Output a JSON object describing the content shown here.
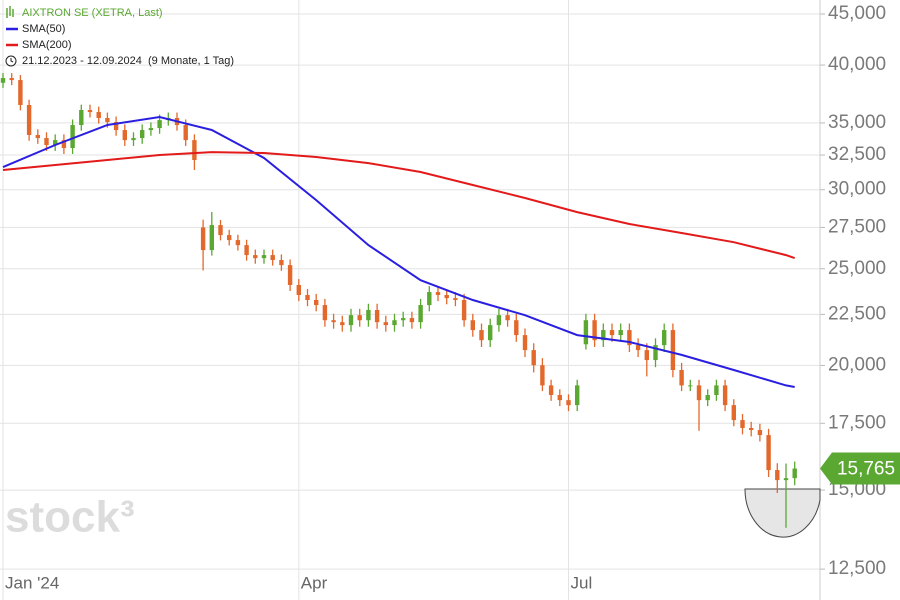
{
  "chart_data": {
    "type": "candlestick",
    "name": "AIXTRON SE (XETRA, Last)",
    "subtitle": "21.12.2023 - 12.09.2024  (9 Monate, 1 Tag)",
    "watermark": "stock³",
    "up_color": "#5aa832",
    "down_color": "#e3682c",
    "categories": [
      "Jan '24",
      null,
      null,
      null,
      null,
      null,
      null,
      null,
      null,
      null,
      null,
      null,
      null,
      null,
      null,
      null,
      null,
      null,
      null,
      null,
      null,
      null,
      null,
      null,
      null,
      null,
      null,
      null,
      null,
      null,
      null,
      null,
      null,
      null,
      "Apr",
      null,
      null,
      null,
      null,
      null,
      null,
      null,
      null,
      null,
      null,
      null,
      null,
      null,
      null,
      null,
      null,
      null,
      null,
      null,
      null,
      null,
      null,
      null,
      null,
      null,
      null,
      null,
      null,
      null,
      null,
      "Jul",
      null,
      null,
      null,
      null,
      null,
      null,
      null,
      null,
      null,
      null,
      null,
      null,
      null,
      null,
      null,
      null,
      null,
      null,
      null,
      null,
      null,
      null,
      null,
      null,
      null,
      null
    ],
    "open": [
      38400,
      38820,
      38640,
      36480,
      34040,
      33800,
      33260,
      33640,
      33030,
      34830,
      36060,
      35890,
      35400,
      35070,
      34430,
      33640,
      33800,
      34430,
      34590,
      35230,
      35400,
      34830,
      33640,
      27500,
      26100,
      27650,
      27020,
      26710,
      26400,
      25800,
      25620,
      25800,
      25510,
      25210,
      24080,
      23530,
      23260,
      22990,
      22200,
      22100,
      21950,
      22460,
      22200,
      22730,
      22100,
      21950,
      22200,
      22310,
      22100,
      22990,
      23690,
      23530,
      23360,
      23260,
      22200,
      21700,
      21200,
      21950,
      22460,
      22200,
      21450,
      20720,
      20010,
      19100,
      18680,
      18460,
      18250,
      21000,
      22200,
      21200,
      21700,
      21450,
      21700,
      20960,
      20720,
      20250,
      20960,
      21700,
      19790,
      19100,
      19100,
      18460,
      18680,
      19100,
      18250,
      17630,
      17310,
      17230,
      17030,
      15710,
      15350,
      15420
    ],
    "high": [
      39270,
      39270,
      39090,
      36930,
      34490,
      34250,
      34090,
      34090,
      35280,
      36510,
      36510,
      36340,
      35850,
      35520,
      34880,
      34250,
      34880,
      35040,
      35680,
      35850,
      35850,
      35280,
      34090,
      28000,
      28500,
      27980,
      27350,
      27040,
      26730,
      26130,
      26130,
      26130,
      25840,
      25540,
      24410,
      23860,
      23590,
      23320,
      22530,
      22430,
      22790,
      22790,
      23060,
      23060,
      22430,
      22530,
      22640,
      22640,
      23320,
      24020,
      24020,
      23860,
      23690,
      23590,
      22530,
      22030,
      22280,
      22790,
      22790,
      22530,
      21780,
      21050,
      20340,
      19350,
      18930,
      18710,
      19350,
      22530,
      22530,
      22030,
      22030,
      22030,
      22030,
      21290,
      21050,
      21290,
      22030,
      22030,
      20120,
      19350,
      19350,
      18930,
      19350,
      19350,
      18500,
      17880,
      17560,
      17480,
      17280,
      15960,
      15950,
      16020
    ],
    "low": [
      37950,
      38190,
      36030,
      33590,
      33350,
      32810,
      32810,
      32580,
      32580,
      34380,
      35440,
      34950,
      34620,
      33980,
      33190,
      33190,
      33350,
      33980,
      34140,
      34780,
      34380,
      33190,
      31400,
      24900,
      25770,
      26690,
      26380,
      26070,
      25470,
      25290,
      25290,
      25180,
      24880,
      23750,
      23200,
      22930,
      22660,
      21870,
      21770,
      21620,
      21620,
      21870,
      21870,
      21770,
      21620,
      21620,
      21870,
      21770,
      21770,
      22660,
      23200,
      23030,
      22930,
      21870,
      21370,
      20870,
      20870,
      21620,
      21870,
      21120,
      20390,
      19680,
      18850,
      18430,
      18210,
      18000,
      18000,
      20750,
      20870,
      20870,
      21120,
      21120,
      20630,
      20390,
      19500,
      19920,
      20630,
      19460,
      18850,
      18850,
      17200,
      18210,
      18430,
      18000,
      17380,
      17060,
      16980,
      16780,
      15460,
      14900,
      13750,
      15170
    ],
    "close": [
      38820,
      38640,
      36480,
      34040,
      33800,
      33260,
      33640,
      33030,
      34830,
      36060,
      35890,
      35400,
      35070,
      34430,
      33640,
      33800,
      34430,
      34590,
      35230,
      35400,
      34830,
      33640,
      32130,
      26100,
      27650,
      27020,
      26710,
      26400,
      25800,
      25620,
      25800,
      25510,
      25210,
      24080,
      23530,
      23260,
      22990,
      22200,
      22100,
      21950,
      22460,
      22200,
      22730,
      22100,
      21950,
      22200,
      22310,
      22100,
      22990,
      23690,
      23530,
      23360,
      23260,
      22200,
      21700,
      21200,
      21950,
      22460,
      22200,
      21450,
      20720,
      20010,
      19100,
      18680,
      18460,
      18250,
      19100,
      22200,
      21200,
      21700,
      21450,
      21700,
      20960,
      20720,
      20250,
      20960,
      21700,
      19790,
      19100,
      19100,
      18460,
      18680,
      19100,
      18250,
      17630,
      17310,
      17230,
      17030,
      15710,
      15350,
      15420,
      15765
    ],
    "last_close_label": "15,765",
    "series": [
      {
        "name": "SMA(50)",
        "color": "#2a1fe0",
        "x": [
          0,
          6,
          12,
          18,
          24,
          30,
          36,
          42,
          48,
          54,
          60,
          66,
          72,
          78,
          84,
          90,
          91
        ],
        "values": [
          31610,
          33260,
          34830,
          35480,
          34430,
          32280,
          29290,
          26400,
          24350,
          23260,
          22460,
          21450,
          21110,
          20490,
          19790,
          19100,
          19030
        ]
      },
      {
        "name": "SMA(200)",
        "color": "#e31a1a",
        "x": [
          0,
          6,
          12,
          18,
          24,
          30,
          36,
          42,
          48,
          54,
          60,
          66,
          72,
          78,
          84,
          90,
          91
        ],
        "values": [
          31400,
          31760,
          32130,
          32500,
          32720,
          32650,
          32350,
          31900,
          31250,
          30330,
          29430,
          28490,
          27720,
          27150,
          26580,
          25800,
          25620
        ]
      }
    ],
    "log_y": true,
    "ylim": [
      11640,
      46480
    ],
    "yticks": [
      {
        "value": 12500,
        "label": "12,500"
      },
      {
        "value": 15000,
        "label": "15,000"
      },
      {
        "value": 17500,
        "label": "17,500"
      },
      {
        "value": 20000,
        "label": "20,000"
      },
      {
        "value": 22500,
        "label": "22,500"
      },
      {
        "value": 25000,
        "label": "25,000"
      },
      {
        "value": 27500,
        "label": "27,500"
      },
      {
        "value": 30000,
        "label": "30,000"
      },
      {
        "value": 32500,
        "label": "32,500"
      },
      {
        "value": 35000,
        "label": "35,000"
      },
      {
        "value": 40000,
        "label": "40,000"
      },
      {
        "value": 45000,
        "label": "45,000"
      }
    ],
    "grid": true
  }
}
